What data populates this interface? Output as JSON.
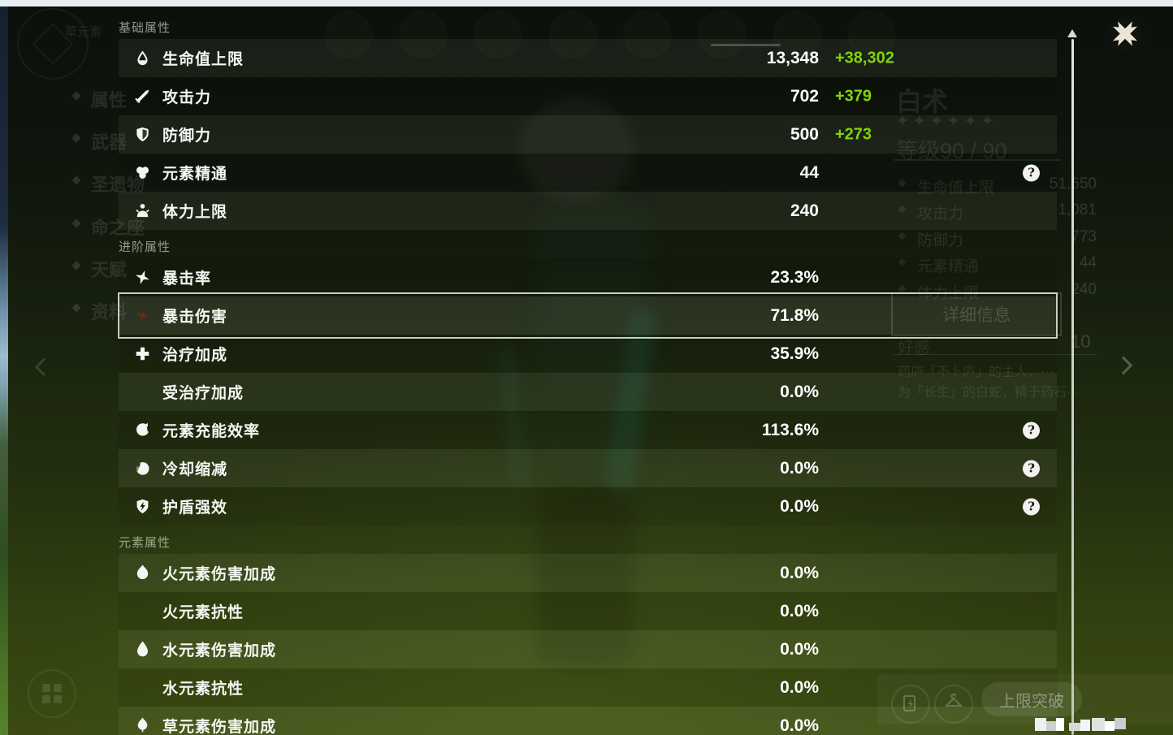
{
  "panel": {
    "sections": [
      {
        "key": "basic",
        "title": "基础属性",
        "rows": [
          {
            "key": "max-hp",
            "icon": "hp-icon",
            "label": "生命值上限",
            "value": "13,348",
            "bonus": "+38,302",
            "striped": true
          },
          {
            "key": "atk",
            "icon": "atk-icon",
            "label": "攻击力",
            "value": "702",
            "bonus": "+379",
            "striped": false
          },
          {
            "key": "def",
            "icon": "def-icon",
            "label": "防御力",
            "value": "500",
            "bonus": "+273",
            "striped": true
          },
          {
            "key": "elemental-mastery",
            "icon": "elemental-mastery-icon",
            "label": "元素精通",
            "value": "44",
            "striped": false,
            "help": true
          },
          {
            "key": "max-stamina",
            "icon": "stamina-icon",
            "label": "体力上限",
            "value": "240",
            "striped": true
          }
        ]
      },
      {
        "key": "advanced",
        "title": "进阶属性",
        "rows": [
          {
            "key": "crit-rate",
            "icon": "crit-rate-icon",
            "label": "暴击率",
            "value": "23.3%",
            "striped": false
          },
          {
            "key": "crit-dmg",
            "icon": "crit-dmg-icon",
            "label": "暴击伤害",
            "value": "71.8%",
            "striped": true,
            "highlighted": true
          },
          {
            "key": "healing-bonus",
            "icon": "healing-icon",
            "label": "治疗加成",
            "value": "35.9%",
            "striped": false
          },
          {
            "key": "incoming-healing-bonus",
            "icon": null,
            "label": "受治疗加成",
            "value": "0.0%",
            "striped": true
          },
          {
            "key": "energy-recharge",
            "icon": "energy-recharge-icon",
            "label": "元素充能效率",
            "value": "113.6%",
            "striped": false,
            "help": true
          },
          {
            "key": "cd-reduction",
            "icon": "cd-icon",
            "label": "冷却缩减",
            "value": "0.0%",
            "striped": true,
            "help": true
          },
          {
            "key": "shield-strength",
            "icon": "shield-strength-icon",
            "label": "护盾强效",
            "value": "0.0%",
            "striped": false,
            "help": true
          }
        ]
      },
      {
        "key": "elemental",
        "title": "元素属性",
        "rows": [
          {
            "key": "pyro-dmg-bonus",
            "icon": "pyro-icon",
            "label": "火元素伤害加成",
            "value": "0.0%",
            "striped": true
          },
          {
            "key": "pyro-res",
            "icon": null,
            "label": "火元素抗性",
            "value": "0.0%",
            "striped": false
          },
          {
            "key": "hydro-dmg-bonus",
            "icon": "hydro-icon",
            "label": "水元素伤害加成",
            "value": "0.0%",
            "striped": true
          },
          {
            "key": "hydro-res",
            "icon": null,
            "label": "水元素抗性",
            "value": "0.0%",
            "striped": false
          },
          {
            "key": "dendro-dmg-bonus",
            "icon": "dendro-icon",
            "label": "草元素伤害加成",
            "value": "0.0%",
            "striped": true
          }
        ]
      }
    ]
  },
  "background": {
    "element_label": "草元素",
    "menu": [
      "属性",
      "武器",
      "圣遗物",
      "命之座",
      "天赋",
      "资料"
    ],
    "character": {
      "name": "白术",
      "stars": 6,
      "level": "等级90 / 90"
    },
    "stats": [
      {
        "label": "生命值上限",
        "value": "51,650"
      },
      {
        "label": "攻击力",
        "value": "1,081"
      },
      {
        "label": "防御力",
        "value": "773"
      },
      {
        "label": "元素精通",
        "value": "44"
      },
      {
        "label": "体力上限",
        "value": "240"
      }
    ],
    "detail_button": "详细信息",
    "friendship": {
      "label": "好感",
      "value": "10"
    },
    "description": [
      "药庐「不卜庐」的主人，⋯",
      "为「长生」的白蛇，精于药石⋯"
    ],
    "limit_break": "上限突破"
  },
  "colors": {
    "bonus_green": "#7ED40E",
    "value_white": "#FFFFFF",
    "highlight_border": "#DDE2D6",
    "top_strip": "#E7EDF2",
    "help_badge_bg": "#F2F3EF"
  }
}
